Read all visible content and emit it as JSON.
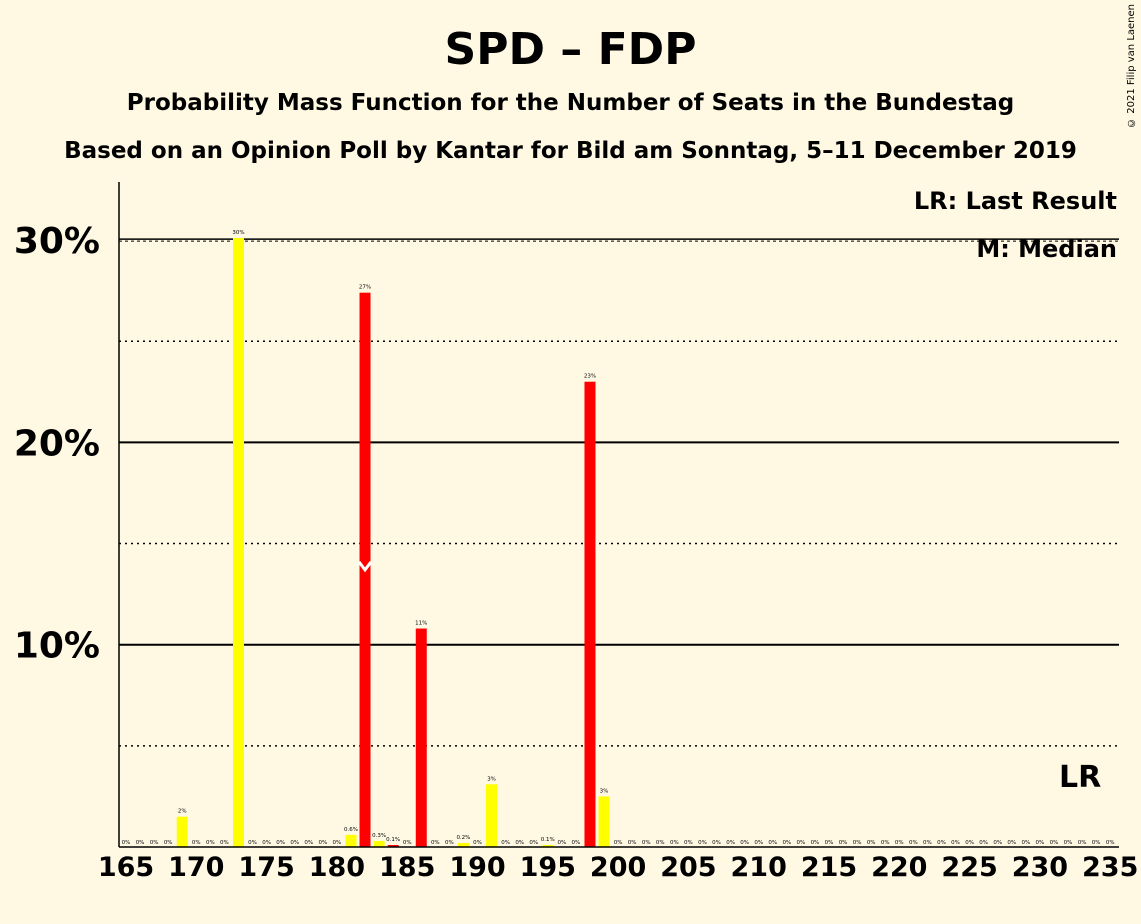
{
  "title": "SPD – FDP",
  "subtitle_1": "Probability Mass Function for the Number of Seats in the Bundestag",
  "subtitle_2": "Based on an Opinion Poll by Kantar for Bild am Sonntag, 5–11 December 2019",
  "copyright": "© 2021 Filip van Laenen",
  "legend": {
    "last_result": "LR: Last Result",
    "median": "M: Median",
    "position": "top-right"
  },
  "lr_label": "LR",
  "colors": {
    "background": "#FFF9E4",
    "bar_primary": "#FF0000",
    "bar_secondary": "#FFFF00",
    "median_marker": "#FFFFFF"
  },
  "chart_data": {
    "type": "bar",
    "xlabel": "",
    "ylabel": "",
    "xlim": [
      165,
      235
    ],
    "ylim": [
      0,
      33
    ],
    "x_ticks": [
      165,
      170,
      175,
      180,
      185,
      190,
      195,
      200,
      205,
      210,
      215,
      220,
      225,
      230,
      235
    ],
    "y_ticks": [
      {
        "value": 10,
        "label": "10%"
      },
      {
        "value": 20,
        "label": "20%"
      },
      {
        "value": 30,
        "label": "30%"
      }
    ],
    "y_dotted_gridlines": [
      5,
      15,
      25
    ],
    "median_seat": 182,
    "last_result_seat": 233,
    "bars": [
      {
        "seat": 165,
        "value": 0,
        "label": "0%"
      },
      {
        "seat": 166,
        "value": 0,
        "label": "0%"
      },
      {
        "seat": 167,
        "value": 0,
        "label": "0%"
      },
      {
        "seat": 168,
        "value": 0,
        "label": "0%"
      },
      {
        "seat": 169,
        "value": 1.5,
        "label": "2%"
      },
      {
        "seat": 170,
        "value": 0,
        "label": "0%"
      },
      {
        "seat": 171,
        "value": 0,
        "label": "0%"
      },
      {
        "seat": 172,
        "value": 0,
        "label": "0%"
      },
      {
        "seat": 173,
        "value": 30.1,
        "label": "30%"
      },
      {
        "seat": 174,
        "value": 0,
        "label": "0%"
      },
      {
        "seat": 175,
        "value": 0,
        "label": "0%"
      },
      {
        "seat": 176,
        "value": 0,
        "label": "0%"
      },
      {
        "seat": 177,
        "value": 0,
        "label": "0%"
      },
      {
        "seat": 178,
        "value": 0,
        "label": "0%"
      },
      {
        "seat": 179,
        "value": 0,
        "label": "0%"
      },
      {
        "seat": 180,
        "value": 0,
        "label": "0%"
      },
      {
        "seat": 181,
        "value": 0.6,
        "label": "0.6%"
      },
      {
        "seat": 182,
        "value": 27.4,
        "label": "27%"
      },
      {
        "seat": 183,
        "value": 0.3,
        "label": "0.3%"
      },
      {
        "seat": 184,
        "value": 0.1,
        "label": "0.1%"
      },
      {
        "seat": 185,
        "value": 0,
        "label": "0%"
      },
      {
        "seat": 186,
        "value": 10.8,
        "label": "11%"
      },
      {
        "seat": 187,
        "value": 0,
        "label": "0%"
      },
      {
        "seat": 188,
        "value": 0,
        "label": "0%"
      },
      {
        "seat": 189,
        "value": 0.2,
        "label": "0.2%"
      },
      {
        "seat": 190,
        "value": 0,
        "label": "0%"
      },
      {
        "seat": 191,
        "value": 3.1,
        "label": "3%"
      },
      {
        "seat": 192,
        "value": 0,
        "label": "0%"
      },
      {
        "seat": 193,
        "value": 0,
        "label": "0%"
      },
      {
        "seat": 194,
        "value": 0,
        "label": "0%"
      },
      {
        "seat": 195,
        "value": 0.1,
        "label": "0.1%"
      },
      {
        "seat": 196,
        "value": 0,
        "label": "0%"
      },
      {
        "seat": 197,
        "value": 0,
        "label": "0%"
      },
      {
        "seat": 198,
        "value": 23.0,
        "label": "23%"
      },
      {
        "seat": 199,
        "value": 2.5,
        "label": "3%"
      },
      {
        "seat": 200,
        "value": 0,
        "label": "0%"
      },
      {
        "seat": 201,
        "value": 0,
        "label": "0%"
      },
      {
        "seat": 202,
        "value": 0,
        "label": "0%"
      },
      {
        "seat": 203,
        "value": 0,
        "label": "0%"
      },
      {
        "seat": 204,
        "value": 0,
        "label": "0%"
      },
      {
        "seat": 205,
        "value": 0,
        "label": "0%"
      },
      {
        "seat": 206,
        "value": 0,
        "label": "0%"
      },
      {
        "seat": 207,
        "value": 0,
        "label": "0%"
      },
      {
        "seat": 208,
        "value": 0,
        "label": "0%"
      },
      {
        "seat": 209,
        "value": 0,
        "label": "0%"
      },
      {
        "seat": 210,
        "value": 0,
        "label": "0%"
      },
      {
        "seat": 211,
        "value": 0,
        "label": "0%"
      },
      {
        "seat": 212,
        "value": 0,
        "label": "0%"
      },
      {
        "seat": 213,
        "value": 0,
        "label": "0%"
      },
      {
        "seat": 214,
        "value": 0,
        "label": "0%"
      },
      {
        "seat": 215,
        "value": 0,
        "label": "0%"
      },
      {
        "seat": 216,
        "value": 0,
        "label": "0%"
      },
      {
        "seat": 217,
        "value": 0,
        "label": "0%"
      },
      {
        "seat": 218,
        "value": 0,
        "label": "0%"
      },
      {
        "seat": 219,
        "value": 0,
        "label": "0%"
      },
      {
        "seat": 220,
        "value": 0,
        "label": "0%"
      },
      {
        "seat": 221,
        "value": 0,
        "label": "0%"
      },
      {
        "seat": 222,
        "value": 0,
        "label": "0%"
      },
      {
        "seat": 223,
        "value": 0,
        "label": "0%"
      },
      {
        "seat": 224,
        "value": 0,
        "label": "0%"
      },
      {
        "seat": 225,
        "value": 0,
        "label": "0%"
      },
      {
        "seat": 226,
        "value": 0,
        "label": "0%"
      },
      {
        "seat": 227,
        "value": 0,
        "label": "0%"
      },
      {
        "seat": 228,
        "value": 0,
        "label": "0%"
      },
      {
        "seat": 229,
        "value": 0,
        "label": "0%"
      },
      {
        "seat": 230,
        "value": 0,
        "label": "0%"
      },
      {
        "seat": 231,
        "value": 0,
        "label": "0%"
      },
      {
        "seat": 232,
        "value": 0,
        "label": "0%"
      },
      {
        "seat": 233,
        "value": 0,
        "label": "0%"
      },
      {
        "seat": 234,
        "value": 0,
        "label": "0%"
      },
      {
        "seat": 235,
        "value": 0,
        "label": "0%"
      }
    ]
  }
}
